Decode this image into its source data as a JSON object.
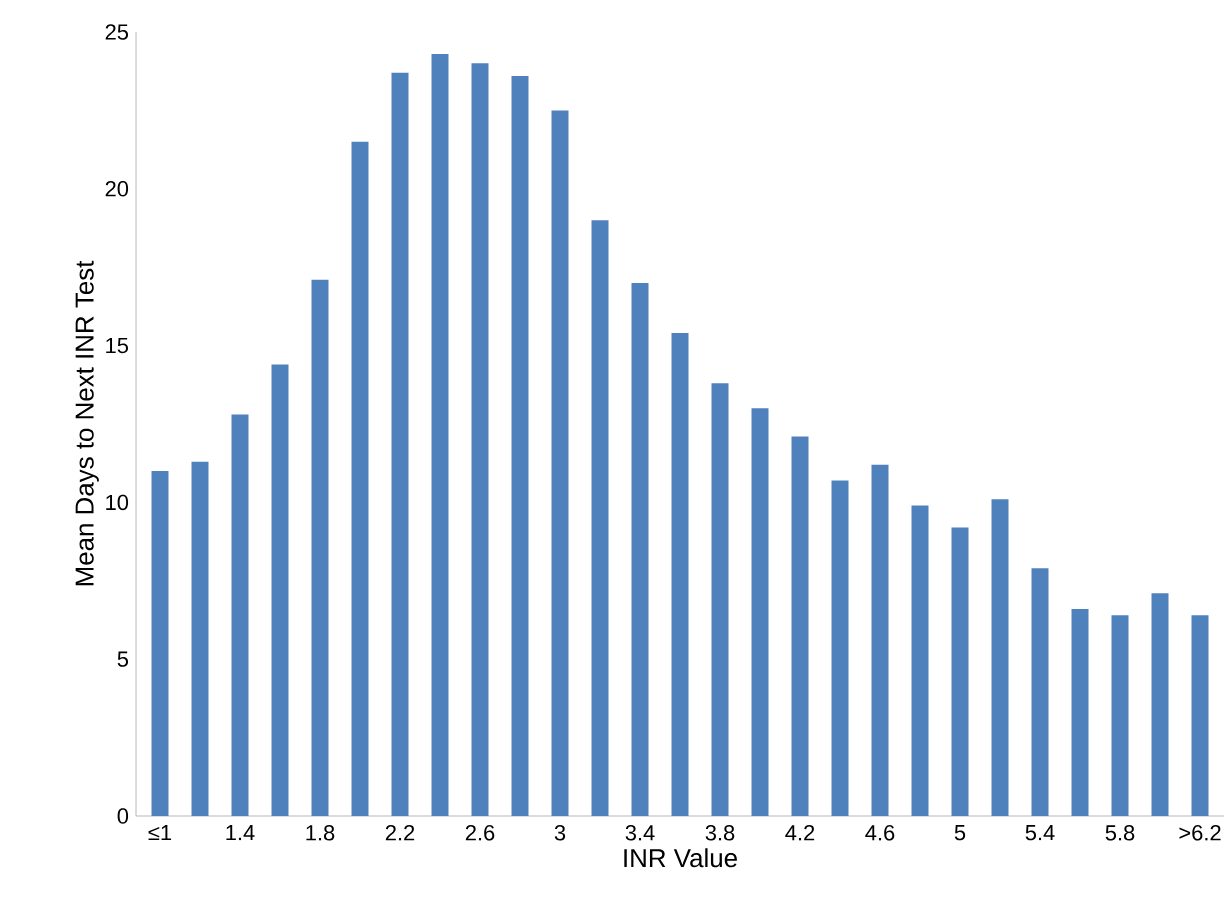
{
  "chart_data": {
    "type": "bar",
    "xlabel": "INR Value",
    "ylabel": "Mean Days to Next INR Test",
    "categories": [
      "≤1",
      null,
      "1.4",
      null,
      "1.8",
      null,
      "2.2",
      null,
      "2.6",
      null,
      "3",
      null,
      "3.4",
      null,
      "3.8",
      null,
      "4.2",
      null,
      "4.6",
      null,
      "5",
      null,
      "5.4",
      null,
      "5.8",
      null,
      ">6.2"
    ],
    "values": [
      11.0,
      11.3,
      12.8,
      14.4,
      17.1,
      21.5,
      23.7,
      24.3,
      24.0,
      23.6,
      22.5,
      19.0,
      17.0,
      15.4,
      13.8,
      13.0,
      12.1,
      10.7,
      11.2,
      9.9,
      9.2,
      10.1,
      7.9,
      6.6,
      6.4,
      7.1,
      6.4
    ],
    "color": "#4f81bd",
    "ylim": [
      0,
      25
    ],
    "yticks": [
      0,
      5,
      10,
      15,
      20,
      25
    ],
    "grid": false
  }
}
